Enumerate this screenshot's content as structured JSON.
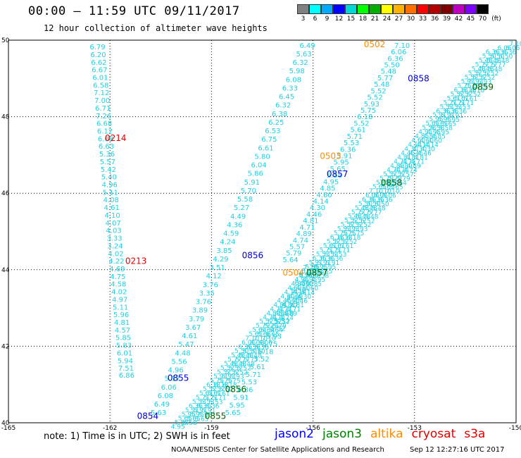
{
  "title": "00:00 – 11:59 UTC 09/11/2017",
  "subtitle": "12 hour collection of altimeter wave heights",
  "colorbar": {
    "colors": [
      "#808080",
      "#00ffff",
      "#00aaff",
      "#0000ff",
      "#00d8d8",
      "#00ff00",
      "#00b000",
      "#ffff00",
      "#ffb000",
      "#ff7000",
      "#ff0000",
      "#b00000",
      "#800000",
      "#c000c0",
      "#8000ff",
      "#000000"
    ],
    "labels": [
      "3",
      "6",
      "9",
      "12",
      "15",
      "18",
      "21",
      "24",
      "27",
      "30",
      "33",
      "36",
      "39",
      "42",
      "45",
      "70"
    ],
    "unit": "(ft)"
  },
  "note": "note: 1) Time is in UTC; 2) SWH is in feet",
  "legend": [
    {
      "name": "jason2",
      "color": "#0000ff"
    },
    {
      "name": "jason3",
      "color": "#008000"
    },
    {
      "name": "altika",
      "color": "#ff8c00"
    },
    {
      "name": "cryosat",
      "color": "#e00000"
    },
    {
      "name": "s3a",
      "color": "#e00000"
    }
  ],
  "footer": "NOAA/NESDIS Center for Satellite Applications and Research",
  "footer_time": "Sep 12 12:27:16 UTC 2017",
  "chart_data": {
    "type": "scatter",
    "xlim": [
      -165,
      -150
    ],
    "ylim": [
      40,
      50
    ],
    "x_ticks": [
      "-165",
      "-162",
      "-159",
      "-156",
      "-153",
      "-150"
    ],
    "y_ticks": [
      "40",
      "42",
      "44",
      "46",
      "48",
      "50"
    ],
    "grid": true,
    "series": [
      {
        "name": "cryosat",
        "color": "#00cccc",
        "points": [
          [
            -162.6,
            49.76,
            "6.79"
          ],
          [
            -162.58,
            49.56,
            "6.20"
          ],
          [
            -162.56,
            49.36,
            "6.62"
          ],
          [
            -162.54,
            49.16,
            "6.67"
          ],
          [
            -162.52,
            48.96,
            "6.01"
          ],
          [
            -162.5,
            48.76,
            "6.58"
          ],
          [
            -162.48,
            48.56,
            "7.12"
          ],
          [
            -162.46,
            48.36,
            "7.00"
          ],
          [
            -162.44,
            48.16,
            "6.71"
          ],
          [
            -162.42,
            47.96,
            "7.26"
          ],
          [
            -162.4,
            47.76,
            "6.68"
          ],
          [
            -162.38,
            47.56,
            "6.12"
          ],
          [
            -162.36,
            47.36,
            "6.08"
          ],
          [
            -162.34,
            47.16,
            "6.63"
          ],
          [
            -162.32,
            46.96,
            "5.36"
          ],
          [
            -162.3,
            46.76,
            "5.57"
          ],
          [
            -162.28,
            46.56,
            "5.42"
          ],
          [
            -162.26,
            46.36,
            "5.40"
          ],
          [
            -162.24,
            46.16,
            "4.96"
          ],
          [
            -162.22,
            45.96,
            "5.11"
          ],
          [
            -162.2,
            45.76,
            "4.08"
          ],
          [
            -162.18,
            45.56,
            "4.61"
          ],
          [
            -162.16,
            45.36,
            "4.10"
          ],
          [
            -162.14,
            45.16,
            "4.07"
          ],
          [
            -162.12,
            44.96,
            "4.03"
          ],
          [
            -162.1,
            44.76,
            "3.33"
          ],
          [
            -162.08,
            44.56,
            "3.24"
          ],
          [
            -162.06,
            44.36,
            "4.02"
          ],
          [
            -162.04,
            44.16,
            "4.22"
          ],
          [
            -162.02,
            43.96,
            "4.69"
          ],
          [
            -162.0,
            43.76,
            "4.75"
          ],
          [
            -161.98,
            43.56,
            "4.58"
          ],
          [
            -161.96,
            43.36,
            "4.02"
          ],
          [
            -161.94,
            43.16,
            "4.97"
          ],
          [
            -161.92,
            42.96,
            "5.11"
          ],
          [
            -161.9,
            42.76,
            "5.96"
          ],
          [
            -161.88,
            42.56,
            "4.81"
          ],
          [
            -161.86,
            42.36,
            "4.57"
          ],
          [
            -161.84,
            42.16,
            "5.85"
          ],
          [
            -161.82,
            41.96,
            "5.83"
          ],
          [
            -161.8,
            41.76,
            "6.01"
          ],
          [
            -161.78,
            41.56,
            "5.94"
          ],
          [
            -161.76,
            41.36,
            "7.51"
          ],
          [
            -161.74,
            41.18,
            "6.86"
          ]
        ]
      }
    ],
    "pass_labels": [
      {
        "text": "0214",
        "x": -162.15,
        "y": 47.37,
        "color": "#e00000"
      },
      {
        "text": "0213",
        "x": -161.55,
        "y": 44.15,
        "color": "#e00000"
      },
      {
        "text": "0502",
        "x": -154.5,
        "y": 49.82,
        "color": "#ff8c00"
      },
      {
        "text": "0503",
        "x": -155.8,
        "y": 46.9,
        "color": "#ff8c00"
      },
      {
        "text": "0504",
        "x": -156.9,
        "y": 43.85,
        "color": "#ff8c00"
      },
      {
        "text": "0858",
        "x": -153.2,
        "y": 48.92,
        "color": "#0000cc"
      },
      {
        "text": "0857",
        "x": -155.6,
        "y": 46.43,
        "color": "#0000cc"
      },
      {
        "text": "0856",
        "x": -158.1,
        "y": 44.3,
        "color": "#0000cc"
      },
      {
        "text": "0855",
        "x": -160.3,
        "y": 41.1,
        "color": "#0000cc"
      },
      {
        "text": "0854",
        "x": -161.2,
        "y": 40.1,
        "color": "#0000cc"
      },
      {
        "text": "0859",
        "x": -151.3,
        "y": 48.7,
        "color": "#006400"
      },
      {
        "text": "0858",
        "x": -154.0,
        "y": 46.2,
        "color": "#006400"
      },
      {
        "text": "0857",
        "x": -156.2,
        "y": 43.85,
        "color": "#006400"
      },
      {
        "text": "0856",
        "x": -158.6,
        "y": 40.8,
        "color": "#006400"
      },
      {
        "text": "0855",
        "x": -159.2,
        "y": 40.1,
        "color": "#006400"
      }
    ]
  }
}
